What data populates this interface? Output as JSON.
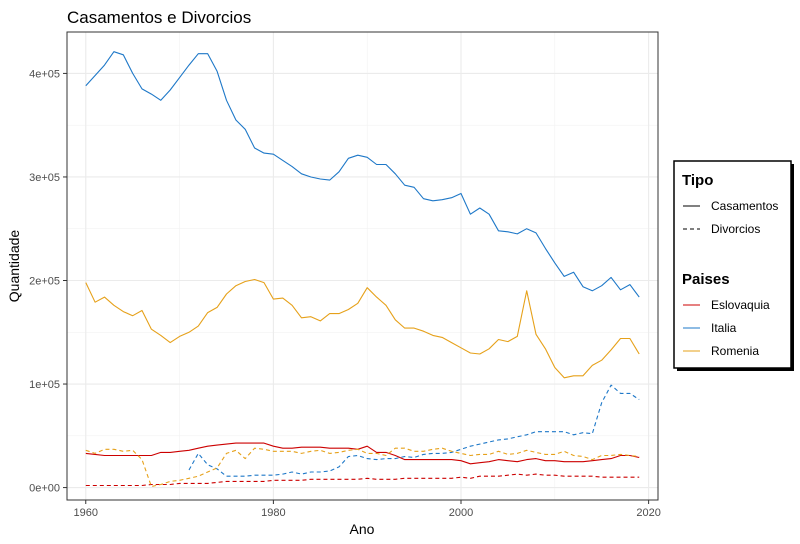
{
  "chart_data": {
    "type": "line",
    "title": "Casamentos e Divorcios",
    "xlabel": "Ano",
    "ylabel": "Quantidade",
    "xlim": [
      1958,
      2021
    ],
    "ylim": [
      -12000,
      440000
    ],
    "x_ticks": [
      1960,
      1980,
      2000,
      2020
    ],
    "x_tick_labels": [
      "1960",
      "1980",
      "2000",
      "2020"
    ],
    "y_ticks": [
      0,
      100000,
      200000,
      300000,
      400000
    ],
    "y_tick_labels": [
      "0e+00",
      "1e+05",
      "2e+05",
      "3e+05",
      "4e+05"
    ],
    "grid": true,
    "legend_position": "right",
    "legend": {
      "tipo": {
        "title": "Tipo",
        "entries": [
          {
            "label": "Casamentos",
            "dash": "solid"
          },
          {
            "label": "Divorcios",
            "dash": "dashed"
          }
        ]
      },
      "paises": {
        "title": "Paises",
        "entries": [
          {
            "label": "Eslovaquia",
            "color": "#cc0000"
          },
          {
            "label": "Italia",
            "color": "#1e78c8"
          },
          {
            "label": "Romenia",
            "color": "#e6a11a"
          }
        ]
      }
    },
    "x": [
      1960,
      1961,
      1962,
      1963,
      1964,
      1965,
      1966,
      1967,
      1968,
      1969,
      1970,
      1971,
      1972,
      1973,
      1974,
      1975,
      1976,
      1977,
      1978,
      1979,
      1980,
      1981,
      1982,
      1983,
      1984,
      1985,
      1986,
      1987,
      1988,
      1989,
      1990,
      1991,
      1992,
      1993,
      1994,
      1995,
      1996,
      1997,
      1998,
      1999,
      2000,
      2001,
      2002,
      2003,
      2004,
      2005,
      2006,
      2007,
      2008,
      2009,
      2010,
      2011,
      2012,
      2013,
      2014,
      2015,
      2016,
      2017,
      2018,
      2019
    ],
    "series": [
      {
        "name": "Italia",
        "tipo": "Casamentos",
        "pais": "Italia",
        "color": "#1e78c8",
        "dash": "solid",
        "values": [
          388000,
          398000,
          408000,
          421000,
          418000,
          400000,
          385000,
          380000,
          374000,
          384000,
          396000,
          408000,
          419000,
          419000,
          402000,
          374000,
          355000,
          346000,
          328000,
          323000,
          322000,
          316000,
          310000,
          303000,
          300000,
          298000,
          297000,
          305000,
          318000,
          321000,
          319000,
          312000,
          312000,
          303000,
          292000,
          290000,
          279000,
          277000,
          278000,
          280000,
          284000,
          264000,
          270000,
          264000,
          248000,
          247000,
          245000,
          250000,
          246000,
          231000,
          217000,
          204000,
          208000,
          194000,
          190000,
          195000,
          203000,
          191000,
          196000,
          184000
        ]
      },
      {
        "name": "Italia",
        "tipo": "Divorcios",
        "pais": "Italia",
        "color": "#1e78c8",
        "dash": "dashed",
        "values": [
          null,
          null,
          null,
          null,
          null,
          null,
          null,
          null,
          null,
          null,
          null,
          17000,
          33000,
          22000,
          18000,
          11000,
          11000,
          11000,
          12000,
          12000,
          12000,
          13000,
          15000,
          13000,
          15000,
          15000,
          16000,
          20000,
          30000,
          31000,
          28000,
          27000,
          28000,
          28000,
          30000,
          29000,
          32000,
          33000,
          33000,
          34000,
          37000,
          40000,
          42000,
          44000,
          46000,
          47000,
          49000,
          51000,
          54000,
          54000,
          54000,
          54000,
          51000,
          53000,
          52000,
          82000,
          99000,
          91000,
          91000,
          85000
        ]
      },
      {
        "name": "Eslovaquia",
        "tipo": "Casamentos",
        "pais": "Eslovaquia",
        "color": "#cc0000",
        "dash": "solid",
        "values": [
          33000,
          32000,
          31000,
          31000,
          31000,
          31000,
          31000,
          31000,
          34000,
          34000,
          35000,
          36000,
          38000,
          40000,
          41000,
          42000,
          43000,
          43000,
          43000,
          43000,
          40000,
          38000,
          38000,
          39000,
          39000,
          39000,
          38000,
          38000,
          38000,
          37000,
          40000,
          34000,
          34000,
          31000,
          27000,
          27000,
          27000,
          27000,
          27000,
          27000,
          26000,
          23000,
          24000,
          25000,
          27000,
          26000,
          25000,
          27000,
          28000,
          26000,
          26000,
          25000,
          25000,
          25000,
          26000,
          27000,
          28000,
          31000,
          31000,
          29000
        ]
      },
      {
        "name": "Eslovaquia",
        "tipo": "Divorcios",
        "pais": "Eslovaquia",
        "color": "#cc0000",
        "dash": "dashed",
        "values": [
          2000,
          2000,
          2000,
          2000,
          2000,
          2000,
          2000,
          3000,
          3000,
          3000,
          4000,
          4000,
          4000,
          4000,
          5000,
          6000,
          6000,
          6000,
          6000,
          6000,
          7000,
          7000,
          7000,
          7000,
          8000,
          8000,
          8000,
          8000,
          8000,
          8000,
          9000,
          8000,
          8000,
          8000,
          9000,
          9000,
          9000,
          9000,
          9000,
          9000,
          10000,
          9000,
          11000,
          11000,
          11000,
          12000,
          13000,
          12000,
          13000,
          12000,
          12000,
          11000,
          11000,
          11000,
          11000,
          10000,
          10000,
          10000,
          10000,
          10000
        ]
      },
      {
        "name": "Romenia",
        "tipo": "Casamentos",
        "pais": "Romenia",
        "color": "#e6a11a",
        "dash": "solid",
        "values": [
          198000,
          179000,
          184000,
          176000,
          170000,
          166000,
          171000,
          153000,
          147000,
          140000,
          146000,
          150000,
          156000,
          169000,
          174000,
          187000,
          195000,
          199000,
          201000,
          198000,
          182000,
          183000,
          176000,
          164000,
          165000,
          161000,
          168000,
          168000,
          172000,
          178000,
          193000,
          184000,
          176000,
          162000,
          154000,
          154000,
          151000,
          147000,
          145000,
          140000,
          135000,
          130000,
          129000,
          134000,
          143000,
          141000,
          146000,
          190000,
          148000,
          134000,
          116000,
          106000,
          108000,
          108000,
          118000,
          123000,
          133000,
          144000,
          144000,
          129000
        ]
      },
      {
        "name": "Romenia",
        "tipo": "Divorcios",
        "pais": "Romenia",
        "color": "#e6a11a",
        "dash": "dashed",
        "values": [
          36000,
          33000,
          37000,
          37000,
          35000,
          36000,
          27000,
          1000,
          3000,
          6000,
          7000,
          9000,
          11000,
          15000,
          19000,
          33000,
          36000,
          28000,
          38000,
          37000,
          35000,
          35000,
          35000,
          33000,
          35000,
          36000,
          33000,
          34000,
          36000,
          37000,
          33000,
          33000,
          31000,
          38000,
          38000,
          35000,
          35000,
          37000,
          38000,
          35000,
          33000,
          31000,
          32000,
          32000,
          35000,
          32000,
          33000,
          36000,
          34000,
          32000,
          32000,
          35000,
          31000,
          30000,
          27000,
          31000,
          31000,
          32000,
          31000,
          30000
        ]
      }
    ]
  }
}
